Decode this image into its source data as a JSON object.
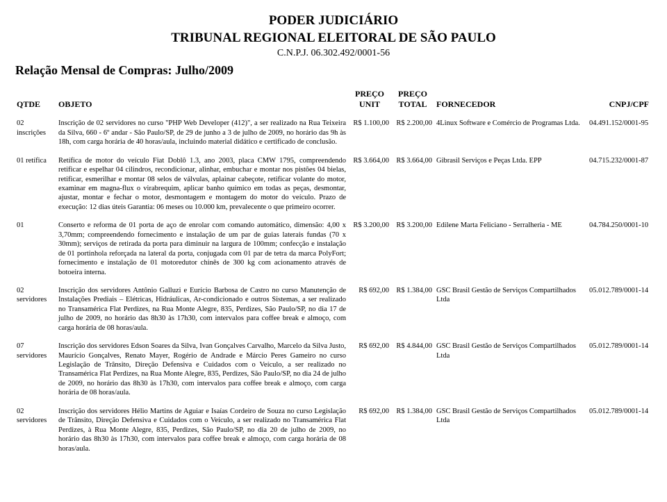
{
  "header": {
    "line1": "PODER JUDICIÁRIO",
    "line2": "TRIBUNAL REGIONAL ELEITORAL DE SÃO PAULO",
    "sub": "C.N.P.J. 06.302.492/0001-56",
    "report_title": "Relação Mensal de Compras: Julho/2009"
  },
  "columns": {
    "qtde": "QTDE",
    "objeto": "OBJETO",
    "unit1": "PREÇO",
    "unit2": "UNIT",
    "total1": "PREÇO",
    "total2": "TOTAL",
    "fornecedor": "FORNECEDOR",
    "cnpj": "CNPJ/CPF"
  },
  "rows": [
    {
      "qtde": "02 inscrições",
      "objeto": "Inscrição de 02 servidores no curso \"PHP Web Developer (412)\", a ser realizado na Rua Teixeira da Silva, 660 - 6º andar - São Paulo/SP, de 29 de junho a 3 de julho de 2009, no horário das 9h às 18h, com carga horária de 40 horas/aula, incluindo material didático e certificado de conclusão.",
      "unit": "R$ 1.100,00",
      "total": "R$ 2.200,00",
      "fornecedor": "4Linux Software e Comércio de Programas Ltda.",
      "cnpj": "04.491.152/0001-95"
    },
    {
      "qtde": "01 retífica",
      "objeto": "Retífica de motor do veículo Fiat Doblô 1.3, ano 2003, placa CMW 1795, compreendendo retificar e espelhar 04 cilindros, recondicionar, alinhar, embuchar e montar nos pistões 04 bielas, retificar, esmerilhar e montar 08 selos de válvulas, aplainar cabeçote, retificar volante do motor, examinar em magna-flux o virabrequim, aplicar banho químico em todas as peças, desmontar, ajustar, montar e fechar o motor, desmontagem e montagem do motor do veículo. Prazo de execução: 12 dias úteis Garantia: 06 meses ou 10.000 km, prevalecente o que primeiro ocorrer.",
      "unit": "R$ 3.664,00",
      "total": "R$ 3.664,00",
      "fornecedor": "Gibrasil Serviços e Peças Ltda. EPP",
      "cnpj": "04.715.232/0001-87"
    },
    {
      "qtde": "01",
      "objeto": "Conserto e reforma de 01 porta de aço de enrolar com comando automático, dimensão: 4,00 x 3,70mm; compreendendo fornecimento e instalação de um par de guias laterais fundas (70 x 30mm); serviços de retirada da porta para diminuir na largura de 100mm; confecção e instalação de 01 portinhola reforçada na lateral da porta, conjugada com 01 par de tetra da marca PolyFort; fornecimento e instalação de 01 motoredutor chinês de 300 kg com acionamento através de botoeira interna.",
      "unit": "R$ 3.200,00",
      "total": "R$ 3.200,00",
      "fornecedor": "Edilene Marta Feliciano - Serralheria - ME",
      "cnpj": "04.784.250/0001-10"
    },
    {
      "qtde": "02 servidores",
      "objeto": "Inscrição dos servidores Antônio Galluzi e Eurício Barbosa de Castro no curso Manutenção de Instalações Prediais – Elétricas, Hidráulicas, Ar-condicionado e outros Sistemas, a ser realizado no Transamérica Flat Perdizes, na Rua Monte Alegre, 835, Perdizes, São Paulo/SP, no dia 17 de julho de 2009, no horário das 8h30 às 17h30, com intervalos para coffee break e almoço, com carga horária de 08 horas/aula.",
      "unit": "R$ 692,00",
      "total": "R$ 1.384,00",
      "fornecedor": "GSC Brasil Gestão de Serviços Compartilhados Ltda",
      "cnpj": "05.012.789/0001-14"
    },
    {
      "qtde": "07 servidores",
      "objeto": "Inscrição dos servidores Edson Soares da Silva, Ivan Gonçalves Carvalho, Marcelo da Silva Justo, Maurício Gonçalves, Renato Mayer, Rogério de Andrade e Márcio Peres Gameiro no curso Legislação de Trânsito, Direção Defensiva e Cuidados com o Veículo, a ser realizado no Transamérica Flat Perdizes, na Rua Monte Alegre, 835, Perdizes, São Paulo/SP, no dia 24 de julho de 2009, no horário das 8h30 às 17h30, com intervalos para coffee break e almoço, com carga horária de 08 horas/aula.",
      "unit": "R$ 692,00",
      "total": "R$ 4.844,00",
      "fornecedor": "GSC Brasil Gestão de Serviços Compartilhados Ltda",
      "cnpj": "05.012.789/0001-14"
    },
    {
      "qtde": "02 servidores",
      "objeto": "Inscrição dos servidores Hélio Martins de Aguiar e Isaías Cordeiro de Souza no curso Legislação de Trânsito, Direção Defensiva e Cuidados com o Veículo, a ser realizado no Transamérica Flat Perdizes, à Rua Monte Alegre, 835, Perdizes, São Paulo/SP, no dia 20 de julho de 2009, no horário das 8h30 às 17h30, com intervalos para coffee break e almoço, com carga horária de 08 horas/aula.",
      "unit": "R$ 692,00",
      "total": "R$ 1.384,00",
      "fornecedor": "GSC Brasil Gestão de Serviços Compartilhados Ltda",
      "cnpj": "05.012.789/0001-14"
    }
  ]
}
